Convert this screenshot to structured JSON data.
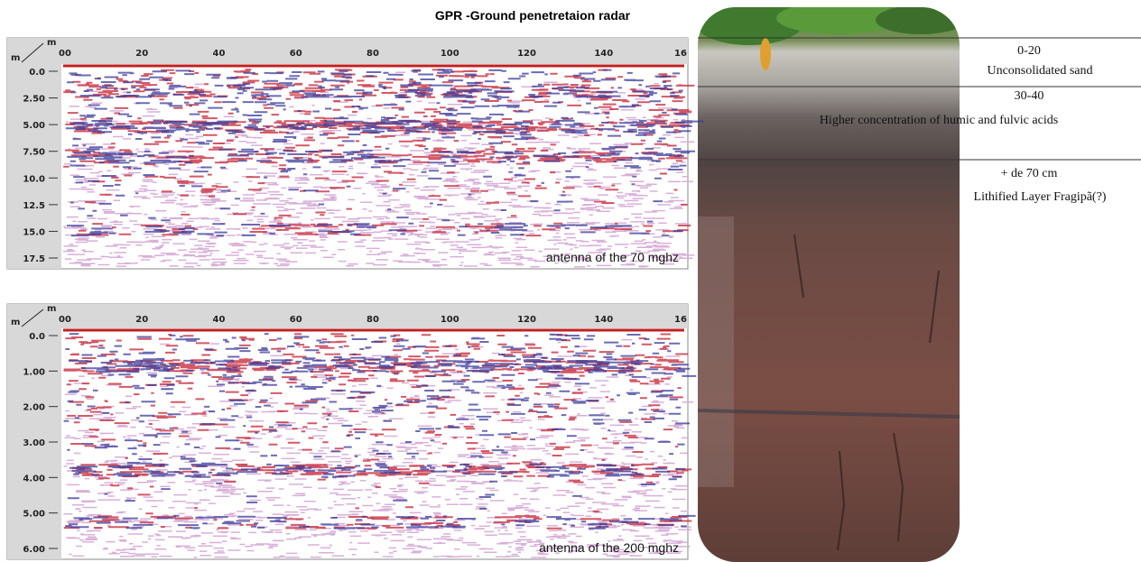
{
  "title": "GPR -Ground penetretaion radar",
  "panels": [
    {
      "unit_x": "m",
      "unit_y": "m",
      "xticks": [
        "00",
        "20",
        "40",
        "60",
        "80",
        "100",
        "120",
        "140",
        "16"
      ],
      "yticks": [
        "0.0",
        "2.50",
        "5.00",
        "7.50",
        "10.0",
        "12.5",
        "15.0",
        "17.5"
      ],
      "caption": "antenna of the 70  mghz"
    },
    {
      "unit_x": "m",
      "unit_y": "m",
      "xticks": [
        "00",
        "20",
        "40",
        "60",
        "80",
        "100",
        "120",
        "140",
        "16"
      ],
      "yticks": [
        "0.0",
        "1.00",
        "2.00",
        "3.00",
        "4.00",
        "5.00",
        "6.00"
      ],
      "caption": "antenna of the 200  mghz"
    }
  ],
  "layers": [
    {
      "depth": "0-20",
      "description": "Unconsolidated sand"
    },
    {
      "depth": "30-40",
      "description": "Higher concentration of humic and fulvic acids"
    },
    {
      "depth": "+ de 70 cm",
      "description": "Lithified Layer Fragipã(?)"
    }
  ]
}
